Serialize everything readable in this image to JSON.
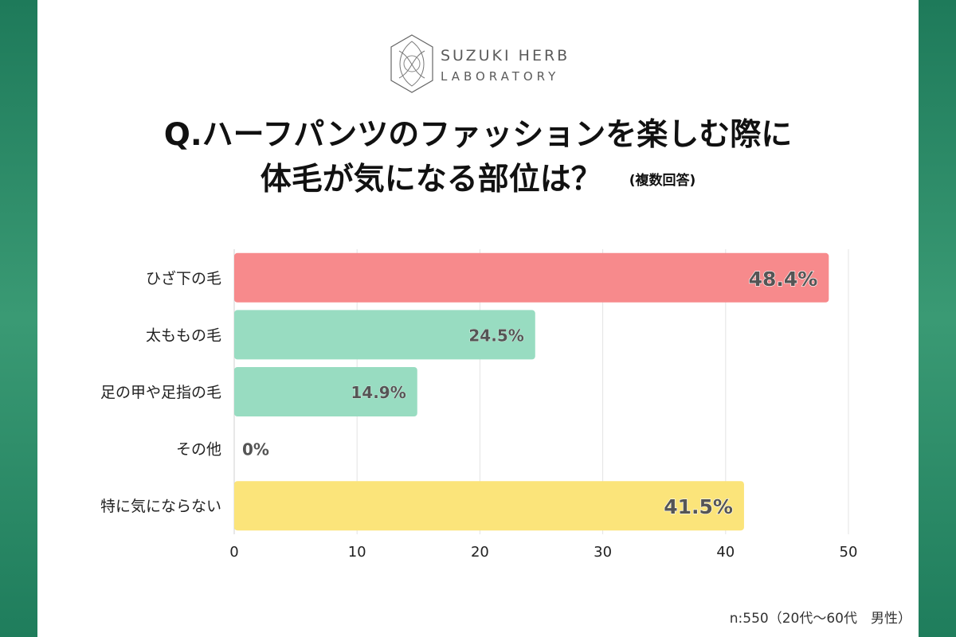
{
  "logo": {
    "line1": "SUZUKI HERB",
    "line2": "LABORATORY"
  },
  "title": {
    "line1": "Q.ハーフパンツのファッションを楽しむ際に",
    "line2": "体毛が気になる部位は？",
    "note": "(複数回答)"
  },
  "footer": {
    "sample": "n:550（20代〜60代　男性）"
  },
  "colors": {
    "pink": "#f78a8c",
    "mint": "#98dcc1",
    "yellow": "#fbe47a",
    "background": "#1e7a5a"
  },
  "chart_data": {
    "type": "bar",
    "orientation": "horizontal",
    "categories": [
      "ひざ下の毛",
      "太ももの毛",
      "足の甲や足指の毛",
      "その他",
      "特に気にならない"
    ],
    "values": [
      48.4,
      24.5,
      14.9,
      0,
      41.5
    ],
    "value_labels": [
      "48.4%",
      "24.5%",
      "14.9%",
      "0%",
      "41.5%"
    ],
    "bar_colors": [
      "#f78a8c",
      "#98dcc1",
      "#98dcc1",
      "#98dcc1",
      "#fbe47a"
    ],
    "x_ticks": [
      0,
      10,
      20,
      30,
      40,
      50
    ],
    "xlim": [
      0,
      50
    ],
    "grid": true,
    "legend": "none"
  }
}
